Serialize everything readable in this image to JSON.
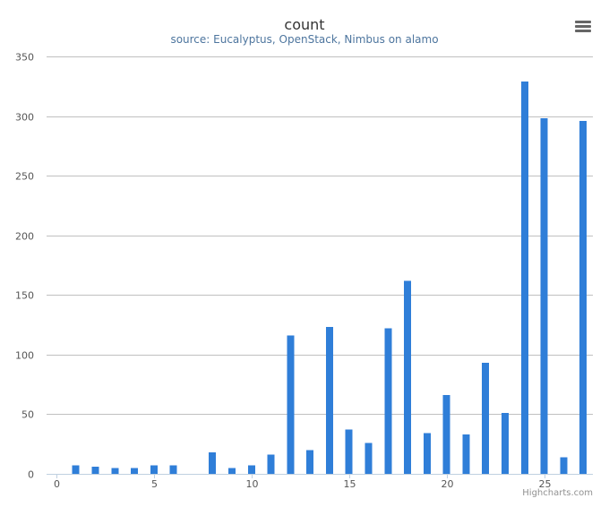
{
  "chart_data": {
    "type": "bar",
    "title": "count",
    "subtitle": "source: Eucalyptus, OpenStack, Nimbus on alamo",
    "xlabel": "",
    "ylabel": "",
    "x": [
      0,
      1,
      2,
      3,
      4,
      5,
      6,
      7,
      8,
      9,
      10,
      11,
      12,
      13,
      14,
      15,
      16,
      17,
      18,
      19,
      20,
      21,
      22,
      23,
      24,
      25,
      26,
      27
    ],
    "values": [
      0,
      7,
      6,
      5,
      5,
      7,
      7,
      0,
      18,
      5,
      7,
      16,
      116,
      20,
      123,
      37,
      26,
      122,
      162,
      34,
      66,
      33,
      93,
      51,
      329,
      298,
      14,
      296
    ],
    "xlim": [
      -0.5,
      27.5
    ],
    "ylim": [
      0,
      350
    ],
    "x_ticks": [
      0,
      5,
      10,
      15,
      20,
      25
    ],
    "y_ticks": [
      0,
      50,
      100,
      150,
      200,
      250,
      300,
      350
    ],
    "grid": true,
    "legend": "none",
    "bar_color": "#2f7ed8"
  },
  "credits": "Highcharts.com",
  "menu_icon": "hamburger-menu-icon"
}
